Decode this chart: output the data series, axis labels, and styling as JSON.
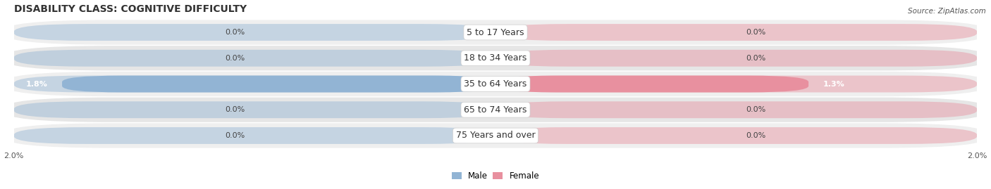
{
  "title": "DISABILITY CLASS: COGNITIVE DIFFICULTY",
  "source": "Source: ZipAtlas.com",
  "categories": [
    "5 to 17 Years",
    "18 to 34 Years",
    "35 to 64 Years",
    "65 to 74 Years",
    "75 Years and over"
  ],
  "male_values": [
    0.0,
    0.0,
    1.8,
    0.0,
    0.0
  ],
  "female_values": [
    0.0,
    0.0,
    1.3,
    0.0,
    0.0
  ],
  "max_val": 2.0,
  "male_color": "#92b4d4",
  "female_color": "#e8909f",
  "male_label": "Male",
  "female_label": "Female",
  "row_bg_colors": [
    "#efefef",
    "#e6e6e6",
    "#efefef",
    "#e6e6e6",
    "#efefef"
  ],
  "title_fontsize": 10,
  "label_fontsize": 8,
  "axis_label_fontsize": 8,
  "category_fontsize": 9
}
